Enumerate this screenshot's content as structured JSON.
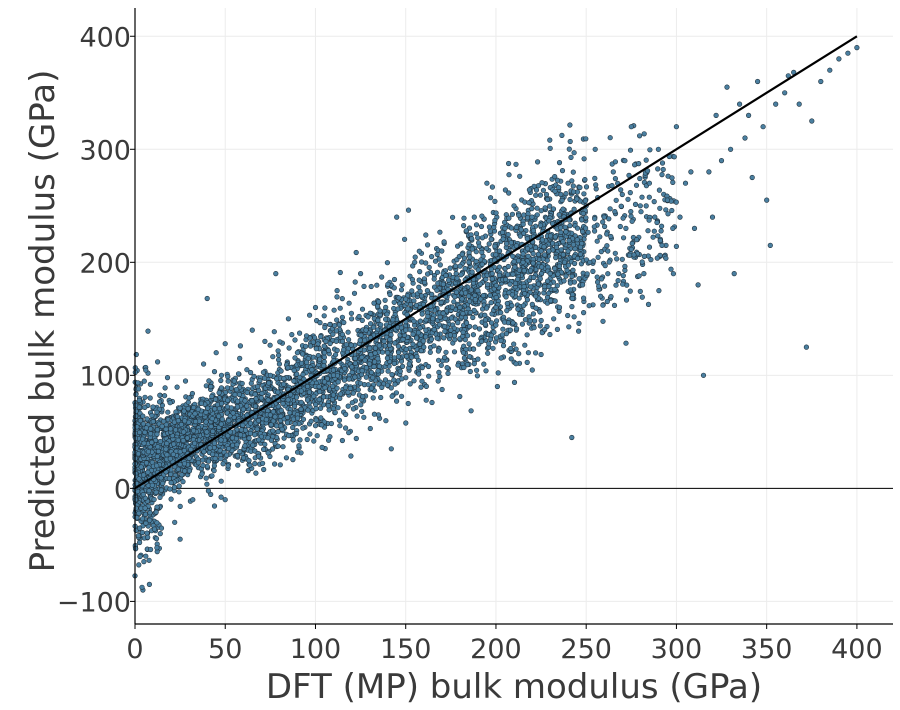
{
  "chart_data": {
    "type": "scatter",
    "title": "",
    "xlabel": "DFT (MP) bulk modulus (GPa)",
    "ylabel": "Predicted bulk modulus (GPa)",
    "xlim": [
      0,
      420
    ],
    "ylim": [
      -120,
      425
    ],
    "xticks": [
      0,
      50,
      100,
      150,
      200,
      250,
      300,
      350,
      400
    ],
    "yticks": [
      -100,
      0,
      100,
      200,
      300,
      400
    ],
    "xtick_labels": [
      "0",
      "50",
      "100",
      "150",
      "200",
      "250",
      "300",
      "350",
      "400"
    ],
    "ytick_labels": [
      "−100",
      "0",
      "100",
      "200",
      "300",
      "400"
    ],
    "grid": true,
    "zero_line": true,
    "reference_line": {
      "x": [
        0,
        400
      ],
      "y": [
        0,
        400
      ],
      "color": "#000000"
    },
    "marker": {
      "fill": "#4a7fa0",
      "stroke": "#1f2f3a"
    },
    "series": [
      {
        "points": [
          [
            2,
            88
          ],
          [
            3,
            60
          ],
          [
            5,
            40
          ],
          [
            6,
            -60
          ],
          [
            8,
            -85
          ],
          [
            10,
            72
          ],
          [
            12,
            20
          ],
          [
            14,
            -40
          ],
          [
            15,
            55
          ],
          [
            18,
            98
          ],
          [
            20,
            5
          ],
          [
            22,
            -30
          ],
          [
            24,
            60
          ],
          [
            25,
            -45
          ],
          [
            28,
            95
          ],
          [
            30,
            80
          ],
          [
            32,
            -10
          ],
          [
            33,
            40
          ],
          [
            35,
            70
          ],
          [
            38,
            110
          ],
          [
            40,
            168
          ],
          [
            42,
            90
          ],
          [
            44,
            20
          ],
          [
            45,
            120
          ],
          [
            48,
            75
          ],
          [
            50,
            -10
          ],
          [
            50,
            128
          ],
          [
            52,
            60
          ],
          [
            55,
            95
          ],
          [
            58,
            115
          ],
          [
            60,
            70
          ],
          [
            62,
            105
          ],
          [
            65,
            140
          ],
          [
            68,
            90
          ],
          [
            70,
            80
          ],
          [
            72,
            130
          ],
          [
            75,
            100
          ],
          [
            78,
            190
          ],
          [
            80,
            110
          ],
          [
            82,
            75
          ],
          [
            85,
            150
          ],
          [
            88,
            95
          ],
          [
            90,
            120
          ],
          [
            92,
            70
          ],
          [
            95,
            135
          ],
          [
            98,
            105
          ],
          [
            100,
            160
          ],
          [
            102,
            90
          ],
          [
            105,
            120
          ],
          [
            108,
            145
          ],
          [
            110,
            100
          ],
          [
            112,
            175
          ],
          [
            115,
            130
          ],
          [
            118,
            85
          ],
          [
            120,
            150
          ],
          [
            122,
            115
          ],
          [
            125,
            190
          ],
          [
            128,
            140
          ],
          [
            130,
            110
          ],
          [
            132,
            80
          ],
          [
            135,
            165
          ],
          [
            138,
            130
          ],
          [
            140,
            120
          ],
          [
            142,
            35
          ],
          [
            145,
            240
          ],
          [
            148,
            180
          ],
          [
            150,
            140
          ],
          [
            152,
            110
          ],
          [
            155,
            200
          ],
          [
            158,
            160
          ],
          [
            160,
            125
          ],
          [
            162,
            175
          ],
          [
            165,
            150
          ],
          [
            168,
            95
          ],
          [
            170,
            210
          ],
          [
            172,
            170
          ],
          [
            175,
            140
          ],
          [
            178,
            190
          ],
          [
            180,
            160
          ],
          [
            182,
            120
          ],
          [
            185,
            200
          ],
          [
            188,
            240
          ],
          [
            190,
            175
          ],
          [
            192,
            130
          ],
          [
            195,
            270
          ],
          [
            198,
            190
          ],
          [
            200,
            160
          ],
          [
            202,
            210
          ],
          [
            205,
            230
          ],
          [
            208,
            140
          ],
          [
            210,
            250
          ],
          [
            212,
            185
          ],
          [
            215,
            200
          ],
          [
            218,
            120
          ],
          [
            220,
            240
          ],
          [
            222,
            170
          ],
          [
            225,
            210
          ],
          [
            228,
            260
          ],
          [
            230,
            190
          ],
          [
            232,
            150
          ],
          [
            235,
            235
          ],
          [
            238,
            200
          ],
          [
            240,
            270
          ],
          [
            242,
            45
          ],
          [
            245,
            220
          ],
          [
            248,
            180
          ],
          [
            250,
            250
          ],
          [
            252,
            200
          ],
          [
            255,
            300
          ],
          [
            258,
            170
          ],
          [
            260,
            240
          ],
          [
            262,
            210
          ],
          [
            265,
            280
          ],
          [
            268,
            190
          ],
          [
            270,
            260
          ],
          [
            272,
            230
          ],
          [
            275,
            320
          ],
          [
            278,
            220
          ],
          [
            280,
            250
          ],
          [
            282,
            190
          ],
          [
            285,
            270
          ],
          [
            288,
            240
          ],
          [
            290,
            300
          ],
          [
            292,
            215
          ],
          [
            295,
            255
          ],
          [
            298,
            230
          ],
          [
            300,
            320
          ],
          [
            302,
            240
          ],
          [
            305,
            270
          ],
          [
            308,
            280
          ],
          [
            310,
            230
          ],
          [
            312,
            180
          ],
          [
            315,
            100
          ],
          [
            318,
            280
          ],
          [
            320,
            240
          ],
          [
            322,
            330
          ],
          [
            325,
            290
          ],
          [
            328,
            355
          ],
          [
            330,
            300
          ],
          [
            332,
            190
          ],
          [
            335,
            340
          ],
          [
            338,
            310
          ],
          [
            340,
            330
          ],
          [
            342,
            275
          ],
          [
            345,
            360
          ],
          [
            348,
            320
          ],
          [
            350,
            255
          ],
          [
            352,
            215
          ],
          [
            355,
            340
          ],
          [
            360,
            350
          ],
          [
            362,
            365
          ],
          [
            365,
            368
          ],
          [
            368,
            340
          ],
          [
            372,
            125
          ],
          [
            375,
            325
          ],
          [
            380,
            360
          ],
          [
            385,
            370
          ],
          [
            390,
            380
          ],
          [
            395,
            385
          ],
          [
            400,
            390
          ]
        ]
      }
    ]
  }
}
